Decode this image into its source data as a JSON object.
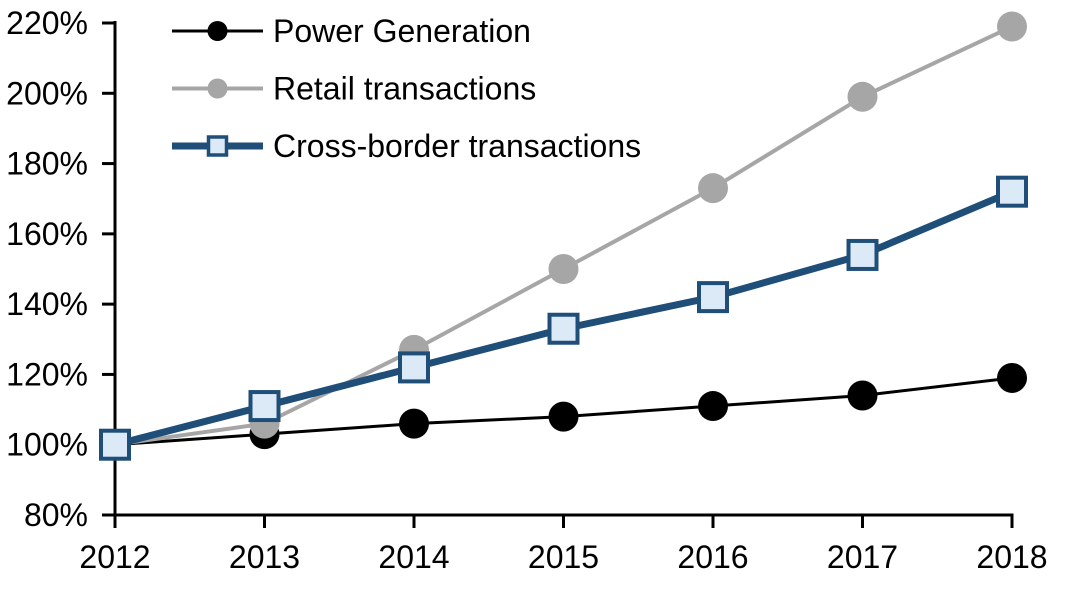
{
  "chart_data": {
    "type": "line",
    "title": "",
    "xlabel": "",
    "ylabel": "",
    "x": [
      2012,
      2013,
      2014,
      2015,
      2016,
      2017,
      2018
    ],
    "xticklabels": [
      "2012",
      "2013",
      "2014",
      "2015",
      "2016",
      "2017",
      "2018"
    ],
    "yticklabels": [
      "80%",
      "100%",
      "120%",
      "140%",
      "160%",
      "180%",
      "200%",
      "220%"
    ],
    "ylim": [
      80,
      220
    ],
    "ytick_step": 20,
    "grid": false,
    "legend_position": "top-left",
    "series": [
      {
        "name": "Power Generation",
        "values": [
          100,
          103,
          106,
          108,
          111,
          114,
          119
        ],
        "line_color": "#000000",
        "line_width": 3,
        "marker": "circle",
        "marker_fill": "#000000",
        "marker_stroke": "#000000"
      },
      {
        "name": "Retail transactions",
        "values": [
          100,
          106,
          127,
          150,
          173,
          199,
          219
        ],
        "line_color": "#a6a6a6",
        "line_width": 4,
        "marker": "circle",
        "marker_fill": "#a6a6a6",
        "marker_stroke": "#a6a6a6"
      },
      {
        "name": "Cross-border transactions",
        "values": [
          100,
          111,
          122,
          133,
          142,
          154,
          172
        ],
        "line_color": "#1f4e79",
        "line_width": 7,
        "marker": "square",
        "marker_fill": "#dce9f7",
        "marker_stroke": "#1f4e79"
      }
    ],
    "colors": {
      "axis": "#000000",
      "background": "#ffffff",
      "text": "#000000"
    }
  }
}
